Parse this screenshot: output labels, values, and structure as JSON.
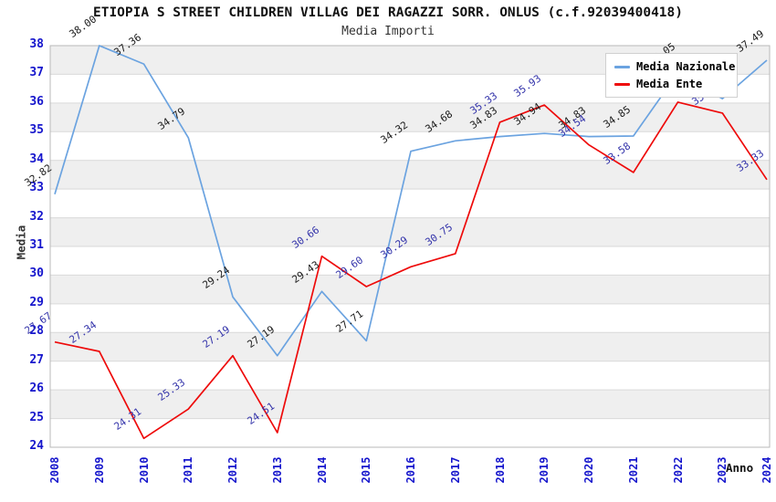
{
  "header": {
    "title": "ETIOPIA S STREET CHILDREN VILLAG DEI RAGAZZI SORR. ONLUS (c.f.92039400418)",
    "subtitle": "Media Importi"
  },
  "axes": {
    "y_title": "Media",
    "x_title": "Anno"
  },
  "legend": {
    "items": [
      {
        "label": "Media Nazionale",
        "color": "#6ba3e0"
      },
      {
        "label": "Media Ente",
        "color": "#ee0a0a"
      }
    ]
  },
  "colors": {
    "tick_label": "#1515cc",
    "grid_line": "#d9d9d9",
    "band_fill": "#efefef",
    "frame": "#b8b8b8",
    "nazionale_line": "#6ba3e0",
    "ente_line": "#ee0a0a",
    "nazionale_point_label": "#1a1a1a",
    "ente_point_label": "#3333aa"
  },
  "chart_data": {
    "type": "line",
    "title": "ETIOPIA S STREET CHILDREN VILLAG DEI RAGAZZI SORR. ONLUS (c.f.92039400418)",
    "subtitle": "Media Importi",
    "xlabel": "Anno",
    "ylabel": "Media",
    "ylim": [
      24,
      38
    ],
    "y_ticks": [
      24,
      25,
      26,
      27,
      28,
      29,
      30,
      31,
      32,
      33,
      34,
      35,
      36,
      37,
      38
    ],
    "grid": true,
    "alternating_bands": true,
    "legend_position": "top-right",
    "categories": [
      2008,
      2009,
      2010,
      2011,
      2012,
      2013,
      2014,
      2015,
      2016,
      2017,
      2018,
      2019,
      2020,
      2021,
      2022,
      2023,
      2024
    ],
    "series": [
      {
        "name": "Media Nazionale",
        "color": "#6ba3e0",
        "label_color": "#1a1a1a",
        "values": [
          32.82,
          38.0,
          37.36,
          34.79,
          29.24,
          27.19,
          29.43,
          27.71,
          34.32,
          34.68,
          34.83,
          34.94,
          34.83,
          34.85,
          37.05,
          36.15,
          37.49
        ]
      },
      {
        "name": "Media Ente",
        "color": "#ee0a0a",
        "label_color": "#3333aa",
        "values": [
          27.67,
          27.34,
          24.31,
          25.33,
          27.19,
          24.51,
          30.66,
          29.6,
          30.29,
          30.75,
          35.33,
          35.93,
          34.54,
          33.58,
          36.03,
          35.65,
          33.33
        ]
      }
    ],
    "occluded_labels_behind_legend": [
      {
        "series": "Media Nazionale",
        "year": 2023
      },
      {
        "series": "Media Ente",
        "year": 2022
      }
    ]
  }
}
